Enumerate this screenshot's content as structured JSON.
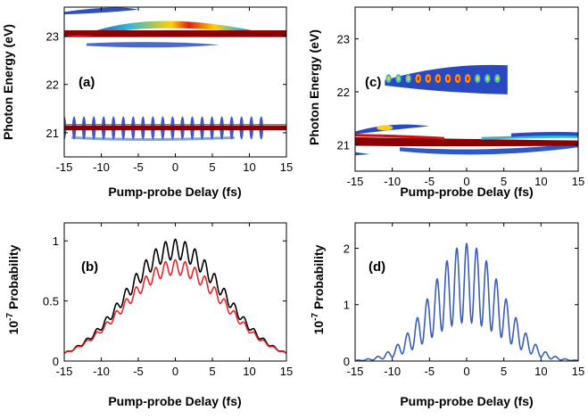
{
  "chart_data": [
    {
      "id": "a",
      "type": "heatmap",
      "panel_label": "(a)",
      "xlabel": "Pump-probe Delay (fs)",
      "ylabel": "Photon Energy (eV)",
      "xlim": [
        -15,
        15
      ],
      "ylim": [
        20.5,
        23.6
      ],
      "xticks": [
        -15,
        -10,
        -5,
        0,
        5,
        10,
        15
      ],
      "yticks": [
        21,
        22,
        23
      ],
      "features": [
        {
          "kind": "band",
          "x": [
            -15,
            15
          ],
          "y": 23.05,
          "intensity": "saturated"
        },
        {
          "kind": "arc",
          "x": [
            -12,
            10
          ],
          "y_center": 23.2,
          "y_peak": 23.35,
          "intensity": "high"
        },
        {
          "kind": "arc",
          "x": [
            -12,
            5
          ],
          "y_center": 22.8,
          "intensity": "low"
        },
        {
          "kind": "band",
          "x": [
            -15,
            15
          ],
          "y": 21.1,
          "intensity": "saturated"
        },
        {
          "kind": "fringes",
          "x": [
            -15,
            12
          ],
          "y": 21.1,
          "period_fs": 1.33,
          "intensity": "medium"
        }
      ]
    },
    {
      "id": "c",
      "type": "heatmap",
      "panel_label": "(c)",
      "xlabel": "Pump-probe Delay (fs)",
      "ylabel": "Photon Energy (eV)",
      "xlim": [
        -15,
        15
      ],
      "ylim": [
        20.5,
        23.6
      ],
      "xticks": [
        -15,
        -10,
        -5,
        0,
        5,
        10,
        15
      ],
      "yticks": [
        21,
        22,
        23
      ],
      "features": [
        {
          "kind": "fringes",
          "x": [
            -11,
            5.5
          ],
          "y": 22.25,
          "period_fs": 1.33,
          "intensity": "high"
        },
        {
          "kind": "band",
          "x": [
            -15,
            15
          ],
          "y": 21.05,
          "intensity": "saturated"
        },
        {
          "kind": "arc",
          "x": [
            -15,
            -5
          ],
          "y": 21.3,
          "intensity": "medium"
        },
        {
          "kind": "arc",
          "x": [
            -9,
            15
          ],
          "y": 20.85,
          "intensity": "medium"
        }
      ]
    },
    {
      "id": "b",
      "type": "line",
      "panel_label": "(b)",
      "xlabel": "Pump-probe Delay (fs)",
      "ylabel_power": "10",
      "ylabel_exp": "-7",
      "ylabel_text": "Probability",
      "xlim": [
        -15,
        15
      ],
      "ylim": [
        0,
        1.15
      ],
      "xticks": [
        -15,
        -10,
        -5,
        0,
        5,
        10,
        15
      ],
      "yticks": [
        0,
        0.5,
        1
      ],
      "series": [
        {
          "color": "#000000",
          "peak": 0.93,
          "sigma": 6.5,
          "modulation": 0.09,
          "period_fs": 1.33
        },
        {
          "color": "#e8262a",
          "peak": 0.78,
          "sigma": 6.7,
          "modulation": 0.08,
          "period_fs": 1.33
        }
      ]
    },
    {
      "id": "d",
      "type": "line",
      "panel_label": "(d)",
      "xlabel": "Pump-probe Delay (fs)",
      "ylabel_power": "10",
      "ylabel_exp": "-7",
      "ylabel_text": "Probability",
      "xlim": [
        -15,
        15
      ],
      "ylim": [
        0,
        2.45
      ],
      "xticks": [
        -15,
        -10,
        -5,
        0,
        5,
        10,
        15
      ],
      "yticks": [
        0,
        1,
        2
      ],
      "series": [
        {
          "color": "#3a5fb5",
          "peak": 2.08,
          "sigma": 4.7,
          "modulation_depth": 0.67,
          "period_fs": 1.33
        }
      ]
    }
  ]
}
